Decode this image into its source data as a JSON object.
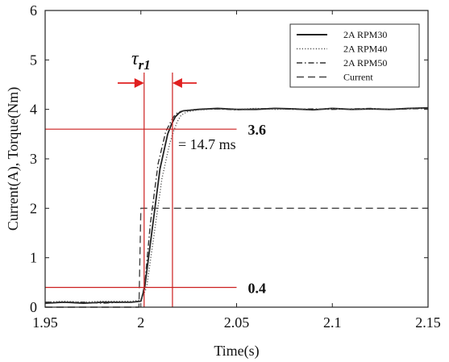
{
  "chart_data": {
    "type": "line",
    "title": "",
    "xlabel": "Time(s)",
    "ylabel": "Current(A), Torque(Nm)",
    "xlim": [
      1.95,
      2.15
    ],
    "ylim": [
      0,
      6
    ],
    "x_ticks": [
      1.95,
      2,
      2.05,
      2.1,
      2.15
    ],
    "x_tick_labels": [
      "1.95",
      "2",
      "2.05",
      "2.1",
      "2.15"
    ],
    "y_ticks": [
      0,
      1,
      2,
      3,
      4,
      5,
      6
    ],
    "y_tick_labels": [
      "0",
      "1",
      "2",
      "3",
      "4",
      "5",
      "6"
    ],
    "grid": false,
    "legend_position": "top-right",
    "series": [
      {
        "name": "2A RPM30",
        "style": "solid",
        "color": "#222222",
        "x": [
          1.95,
          1.96,
          1.97,
          1.98,
          1.99,
          1.995,
          2.0,
          2.002,
          2.006,
          2.01,
          2.014,
          2.016,
          2.018,
          2.02,
          2.022,
          2.025,
          2.03,
          2.04,
          2.05,
          2.06,
          2.07,
          2.08,
          2.09,
          2.1,
          2.11,
          2.12,
          2.13,
          2.14,
          2.15
        ],
        "y": [
          0.08,
          0.1,
          0.08,
          0.1,
          0.1,
          0.1,
          0.12,
          0.4,
          1.6,
          2.8,
          3.5,
          3.7,
          3.85,
          3.93,
          3.97,
          3.98,
          4.0,
          4.02,
          4.0,
          4.0,
          4.02,
          4.01,
          3.99,
          4.02,
          4.0,
          4.01,
          4.0,
          4.02,
          4.03
        ]
      },
      {
        "name": "2A RPM40",
        "style": "dotted",
        "color": "#555555",
        "x": [
          1.95,
          1.96,
          1.97,
          1.98,
          1.99,
          1.995,
          2.0,
          2.003,
          2.007,
          2.011,
          2.015,
          2.017,
          2.019,
          2.021,
          2.024,
          2.03,
          2.04,
          2.05,
          2.06,
          2.07,
          2.08,
          2.09,
          2.1,
          2.11,
          2.12,
          2.13,
          2.14,
          2.15
        ],
        "y": [
          0.1,
          0.12,
          0.1,
          0.12,
          0.12,
          0.12,
          0.14,
          0.4,
          1.5,
          2.6,
          3.3,
          3.55,
          3.75,
          3.88,
          3.95,
          3.99,
          4.01,
          4.0,
          4.02,
          4.0,
          4.01,
          4.0,
          4.02,
          4.0,
          4.01,
          4.0,
          4.02,
          4.02
        ]
      },
      {
        "name": "2A RPM50",
        "style": "dashdot",
        "color": "#333333",
        "x": [
          1.95,
          1.96,
          1.97,
          1.98,
          1.99,
          1.995,
          2.0,
          2.002,
          2.005,
          2.009,
          2.013,
          2.016,
          2.018,
          2.02,
          2.023,
          2.03,
          2.04,
          2.05,
          2.06,
          2.07,
          2.08,
          2.09,
          2.1,
          2.11,
          2.12,
          2.13,
          2.14,
          2.15
        ],
        "y": [
          0.1,
          0.1,
          0.1,
          0.08,
          0.1,
          0.1,
          0.12,
          0.45,
          1.7,
          2.9,
          3.55,
          3.78,
          3.9,
          3.95,
          3.98,
          4.0,
          4.01,
          3.99,
          4.01,
          4.02,
          4.0,
          4.01,
          4.0,
          4.01,
          4.02,
          4.0,
          4.01,
          4.02
        ]
      },
      {
        "name": "Current",
        "style": "dashed",
        "color": "#444444",
        "x": [
          1.95,
          1.999,
          1.9995,
          2.0,
          2.0005,
          2.15
        ],
        "y": [
          0.0,
          0.0,
          1.0,
          2.0,
          2.0,
          2.0
        ]
      }
    ],
    "annotations": {
      "level_high": {
        "label": "3.6",
        "value": 3.6,
        "color": "#cc1f1f"
      },
      "level_low": {
        "label": "0.4",
        "value": 0.4,
        "color": "#cc1f1f"
      },
      "t_start": 2.0017,
      "t_end": 2.0165,
      "time_constant_label": "= 14.7 ms",
      "tau_symbol": "τ",
      "tau_subscript": "r1",
      "arrow_color": "#e02020"
    }
  }
}
